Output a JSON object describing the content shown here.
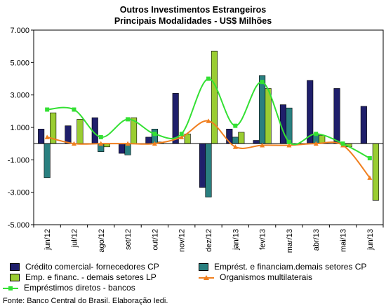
{
  "chart_data": {
    "type": "bar",
    "title": "Outros Investimentos Estrangeiros",
    "subtitle": "Principais Modalidades  - US$ Milhões",
    "categories": [
      "jun/12",
      "jul/12",
      "ago/12",
      "set/12",
      "out/12",
      "nov/12",
      "dez/12",
      "jan/13",
      "fev/13",
      "mar/13",
      "abr/13",
      "mai/13",
      "jun/13"
    ],
    "ylim": [
      -5000,
      7000
    ],
    "yticks": [
      -5000,
      -3000,
      -1000,
      1000,
      3000,
      5000,
      7000
    ],
    "ytick_labels": [
      "-5.000",
      "-3.000",
      "-1.000",
      "1.000",
      "3.000",
      "5.000",
      "7.000"
    ],
    "grid": false,
    "legend_position": "bottom",
    "series": [
      {
        "name": "Crédito comercial- fornecedores CP",
        "kind": "bar",
        "color": "#1f1f6b",
        "values": [
          900,
          1100,
          1600,
          -600,
          400,
          3100,
          -2700,
          900,
          200,
          2400,
          3900,
          3400,
          2300
        ]
      },
      {
        "name": "Emprést. e financiam.demais setores CP",
        "kind": "bar",
        "color": "#2a8080",
        "values": [
          -2100,
          0,
          -500,
          -700,
          900,
          0,
          -3300,
          400,
          4200,
          2200,
          600,
          0,
          0
        ]
      },
      {
        "name": "Emp. e financ. - demais setores LP",
        "kind": "bar",
        "color": "#9acd32",
        "values": [
          1900,
          1500,
          -200,
          1600,
          100,
          600,
          5700,
          700,
          3400,
          0,
          500,
          -200,
          -3500
        ]
      },
      {
        "name": "Empréstimos diretos - bancos",
        "kind": "line",
        "color": "#33e033",
        "values": [
          2100,
          2100,
          400,
          1500,
          600,
          600,
          4000,
          1100,
          3800,
          100,
          600,
          0,
          -900
        ]
      },
      {
        "name": "Organismos multilaterais",
        "kind": "line",
        "color": "#f07f1f",
        "values": [
          400,
          0,
          0,
          0,
          0,
          400,
          1400,
          -200,
          -100,
          -100,
          0,
          -100,
          -2100
        ]
      }
    ]
  },
  "legend": {
    "items": [
      {
        "label": "Crédito comercial- fornecedores CP",
        "color": "#1f1f6b"
      },
      {
        "label": "Emprést. e financiam.demais setores CP",
        "color": "#2a8080"
      },
      {
        "label": "Emp. e financ. - demais setores LP",
        "color": "#9acd32"
      },
      {
        "label": "Organismos multilaterais",
        "color": "#f07f1f"
      },
      {
        "label": "Empréstimos diretos - bancos",
        "color": "#33e033"
      }
    ]
  },
  "source": "Fonte: Banco Central do Brasil. Elaboração Iedi."
}
